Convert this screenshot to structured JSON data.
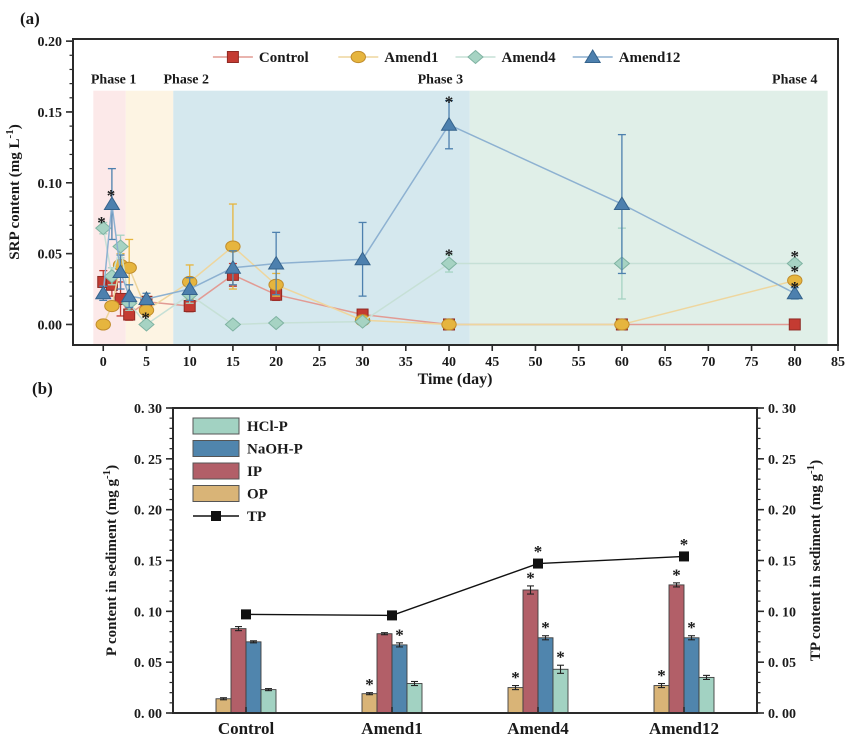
{
  "figure": {
    "panel_a_tag": "(a)",
    "panel_b_tag": "(b)",
    "spine_color": "#2a2a2a",
    "asterisk_color": "#111111",
    "asterisk_glyph": "*"
  },
  "chart_data": [
    {
      "id": "panel_a",
      "type": "line",
      "xlabel": "Time (day)",
      "ylabel": {
        "pre": "SRP content (mg L",
        "sup": "-1",
        "post": ")"
      },
      "xlim": [
        -3.5,
        85
      ],
      "ylim": [
        -0.0145,
        0.2015
      ],
      "grid": false,
      "legend_position": "top-center-inside",
      "xticks": {
        "values": [
          0,
          5,
          10,
          15,
          20,
          25,
          30,
          35,
          40,
          45,
          50,
          55,
          60,
          65,
          70,
          75,
          80,
          85
        ],
        "labels": [
          "0",
          "5",
          "10",
          "15",
          "20",
          "25",
          "30",
          "35",
          "40",
          "45",
          "50",
          "55",
          "60",
          "65",
          "70",
          "75",
          "80",
          "85"
        ]
      },
      "yticks": {
        "values": [
          0,
          0.05,
          0.1,
          0.15,
          0.2
        ],
        "labels": [
          "0.00",
          "0.05",
          "0.10",
          "0.15",
          "0.20"
        ],
        "minor_step": 0.01
      },
      "phases": [
        {
          "label": "Phase 1",
          "from_day": -1.15,
          "to_day": 2.6,
          "color": "#fce9e9",
          "label_day": 1.2
        },
        {
          "label": "Phase 2",
          "from_day": 2.6,
          "to_day": 8.1,
          "color": "#fdf4e3",
          "label_day": 9.6
        },
        {
          "label": "Phase 3",
          "from_day": 8.1,
          "to_day": 42.4,
          "color": "#d5e8ee",
          "label_day": 39.0
        },
        {
          "label": "Phase 4",
          "from_day": 42.4,
          "to_day": 83.8,
          "color": "#e0efe8",
          "label_day": 80.0
        }
      ],
      "phase_band_top_value": 0.165,
      "x": [
        0,
        1,
        2,
        3,
        5,
        10,
        15,
        20,
        30,
        40,
        60,
        80
      ],
      "series": [
        {
          "name": "Control",
          "marker": "square",
          "marker_color": "#c43b32",
          "edge_color": "#8f2a24",
          "line_color": "#e29b94",
          "y": [
            0.03,
            0.028,
            0.018,
            0.007,
            0.016,
            0.013,
            0.035,
            0.021,
            0.007,
            0.0,
            0.0,
            0.0
          ],
          "err": [
            0.008,
            0.008,
            0.012,
            0.004,
            0.003,
            0.004,
            0.008,
            0.004,
            0.002,
            0.001,
            0.001,
            0.001
          ]
        },
        {
          "name": "Amend1",
          "marker": "circle",
          "marker_color": "#e6b53e",
          "edge_color": "#c08c2c",
          "line_color": "#eed69e",
          "y": [
            0.0,
            0.013,
            0.042,
            0.04,
            0.01,
            0.03,
            0.055,
            0.028,
            0.003,
            0.0,
            0.0,
            0.031
          ],
          "err": [
            0.001,
            0.003,
            0.008,
            0.02,
            0.004,
            0.012,
            0.03,
            0.008,
            0.002,
            0.001,
            0.001,
            0.003
          ]
        },
        {
          "name": "Amend4",
          "marker": "diamond",
          "marker_color": "#a6d3c3",
          "edge_color": "#7fb3a2",
          "line_color": "#c6e0d6",
          "y": [
            0.068,
            0.034,
            0.055,
            0.015,
            0.0,
            0.021,
            0.0,
            0.001,
            0.002,
            0.043,
            0.043,
            0.043
          ],
          "err": [
            0.004,
            0.006,
            0.008,
            0.005,
            0.001,
            0.006,
            0.001,
            0.001,
            0.001,
            0.006,
            0.025,
            0.003
          ]
        },
        {
          "name": "Amend12",
          "marker": "triangle",
          "marker_color": "#4d80ae",
          "edge_color": "#35638c",
          "line_color": "#8db1d1",
          "y": [
            0.022,
            0.085,
            0.037,
            0.02,
            0.018,
            0.025,
            0.04,
            0.043,
            0.046,
            0.141,
            0.085,
            0.022
          ],
          "err": [
            0.005,
            0.025,
            0.012,
            0.008,
            0.004,
            0.008,
            0.012,
            0.022,
            0.026,
            0.017,
            0.049,
            0.004
          ]
        }
      ],
      "asterisks": [
        {
          "day": -0.2,
          "value": 0.072
        },
        {
          "day": 0.9,
          "value": 0.091
        },
        {
          "day": 4.9,
          "value": 0.0045
        },
        {
          "day": 40,
          "value": 0.157
        },
        {
          "day": 40,
          "value": 0.049
        },
        {
          "day": 80,
          "value": 0.048
        },
        {
          "day": 80,
          "value": 0.0375
        },
        {
          "day": 80,
          "value": 0.026
        }
      ]
    },
    {
      "id": "panel_b",
      "type": "bar",
      "categories": [
        "Control",
        "Amend1",
        "Amend4",
        "Amend12"
      ],
      "ylabel_left": {
        "pre": "P content in sediment (mg g",
        "sup": "-1",
        "post": ")"
      },
      "ylabel_right": {
        "pre": "TP content in sediment (mg g",
        "sup": "-1",
        "post": ")"
      },
      "ylim": [
        0,
        0.3
      ],
      "grid": false,
      "legend_position": "top-left-inside",
      "yticks": {
        "values": [
          0,
          0.05,
          0.1,
          0.15,
          0.2,
          0.25,
          0.3
        ],
        "labels": [
          "0. 00",
          "0. 05",
          "0. 10",
          "0. 15",
          "0. 20",
          "0. 25",
          "0. 30"
        ],
        "minor_step": 0.01
      },
      "bar_series": [
        {
          "name": "OP",
          "color": "#d9b477",
          "values": [
            0.014,
            0.019,
            0.025,
            0.027
          ],
          "err": [
            0.001,
            0.001,
            0.002,
            0.002
          ],
          "asterisk": [
            false,
            true,
            true,
            true
          ]
        },
        {
          "name": "IP",
          "color": "#b25f68",
          "values": [
            0.083,
            0.078,
            0.121,
            0.126
          ],
          "err": [
            0.002,
            0.001,
            0.004,
            0.002
          ],
          "asterisk": [
            false,
            false,
            true,
            true
          ]
        },
        {
          "name": "NaOH-P",
          "color": "#5085ad",
          "values": [
            0.07,
            0.067,
            0.074,
            0.074
          ],
          "err": [
            0.001,
            0.002,
            0.002,
            0.002
          ],
          "asterisk": [
            false,
            true,
            true,
            true
          ]
        },
        {
          "name": "HCl-P",
          "color": "#a2d2c2",
          "values": [
            0.023,
            0.029,
            0.043,
            0.035
          ],
          "err": [
            0.001,
            0.002,
            0.004,
            0.002
          ],
          "asterisk": [
            false,
            false,
            true,
            false
          ]
        }
      ],
      "line_series": {
        "name": "TP",
        "color": "#111111",
        "values": [
          0.097,
          0.096,
          0.147,
          0.154
        ],
        "err": [
          0.001,
          0.001,
          0.004,
          0.003
        ],
        "asterisk": [
          false,
          false,
          true,
          true
        ]
      },
      "legend_order": [
        "HCl-P",
        "NaOH-P",
        "IP",
        "OP",
        "TP"
      ]
    }
  ]
}
